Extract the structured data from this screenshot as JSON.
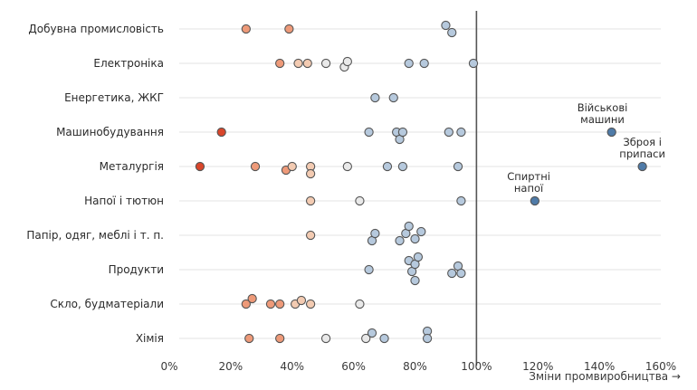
{
  "chart_data": {
    "type": "scatter",
    "title": "",
    "xlabel": "Зміни промвиробництва →",
    "ylabel": "",
    "xlim": [
      0,
      160
    ],
    "x_ticks": [
      "0%",
      "20%",
      "40%",
      "60%",
      "80%",
      "100%",
      "120%",
      "140%",
      "160%"
    ],
    "x_tick_values": [
      0,
      20,
      40,
      60,
      80,
      100,
      120,
      140,
      160
    ],
    "reference_line": 100,
    "grid": true,
    "colors": {
      "strong_decline": "#d9462b",
      "decline": "#ee9a79",
      "mild_decline": "#f3cbb2",
      "neutral": "#e9e9e9",
      "growth": "#b6c9dd",
      "strong_growth": "#4f7ba8",
      "stroke": "#555555"
    },
    "categories": [
      "Добувна промисловість",
      "Електроніка",
      "Енергетика, ЖКГ",
      "Машинобудування",
      "Металургія",
      "Напої і тютюн",
      "Папір, одяг, меблі і т. п.",
      "Продукти",
      "Скло, будматеріали",
      "Хімія"
    ],
    "points": [
      {
        "category": 0,
        "x": 25,
        "dy": 0
      },
      {
        "category": 0,
        "x": 39,
        "dy": 0
      },
      {
        "category": 0,
        "x": 90,
        "dy": -4
      },
      {
        "category": 0,
        "x": 92,
        "dy": 4
      },
      {
        "category": 1,
        "x": 36,
        "dy": 0
      },
      {
        "category": 1,
        "x": 42,
        "dy": 0
      },
      {
        "category": 1,
        "x": 45,
        "dy": 0
      },
      {
        "category": 1,
        "x": 51,
        "dy": 0
      },
      {
        "category": 1,
        "x": 57,
        "dy": 4
      },
      {
        "category": 1,
        "x": 58,
        "dy": -2
      },
      {
        "category": 1,
        "x": 78,
        "dy": 0
      },
      {
        "category": 1,
        "x": 83,
        "dy": 0
      },
      {
        "category": 1,
        "x": 99,
        "dy": 0
      },
      {
        "category": 2,
        "x": 67,
        "dy": 0
      },
      {
        "category": 2,
        "x": 73,
        "dy": 0
      },
      {
        "category": 3,
        "x": 17,
        "dy": 0
      },
      {
        "category": 3,
        "x": 65,
        "dy": 0
      },
      {
        "category": 3,
        "x": 74,
        "dy": 0
      },
      {
        "category": 3,
        "x": 75,
        "dy": 8
      },
      {
        "category": 3,
        "x": 76,
        "dy": 0
      },
      {
        "category": 3,
        "x": 91,
        "dy": 0
      },
      {
        "category": 3,
        "x": 95,
        "dy": 0
      },
      {
        "category": 3,
        "x": 144,
        "dy": 0
      },
      {
        "category": 4,
        "x": 10,
        "dy": 0
      },
      {
        "category": 4,
        "x": 28,
        "dy": 0
      },
      {
        "category": 4,
        "x": 38,
        "dy": 4
      },
      {
        "category": 4,
        "x": 40,
        "dy": 0
      },
      {
        "category": 4,
        "x": 46,
        "dy": 0
      },
      {
        "category": 4,
        "x": 46,
        "dy": 8
      },
      {
        "category": 4,
        "x": 58,
        "dy": 0
      },
      {
        "category": 4,
        "x": 71,
        "dy": 0
      },
      {
        "category": 4,
        "x": 76,
        "dy": 0
      },
      {
        "category": 4,
        "x": 94,
        "dy": 0
      },
      {
        "category": 4,
        "x": 154,
        "dy": 0
      },
      {
        "category": 5,
        "x": 46,
        "dy": 0
      },
      {
        "category": 5,
        "x": 62,
        "dy": 0
      },
      {
        "category": 5,
        "x": 95,
        "dy": 0
      },
      {
        "category": 5,
        "x": 119,
        "dy": 0
      },
      {
        "category": 6,
        "x": 46,
        "dy": 0
      },
      {
        "category": 6,
        "x": 66,
        "dy": 6
      },
      {
        "category": 6,
        "x": 67,
        "dy": -2
      },
      {
        "category": 6,
        "x": 75,
        "dy": 6
      },
      {
        "category": 6,
        "x": 77,
        "dy": -2
      },
      {
        "category": 6,
        "x": 78,
        "dy": -10
      },
      {
        "category": 6,
        "x": 80,
        "dy": 4
      },
      {
        "category": 6,
        "x": 82,
        "dy": -4
      },
      {
        "category": 7,
        "x": 65,
        "dy": 0
      },
      {
        "category": 7,
        "x": 78,
        "dy": -10
      },
      {
        "category": 7,
        "x": 79,
        "dy": 2
      },
      {
        "category": 7,
        "x": 80,
        "dy": -6
      },
      {
        "category": 7,
        "x": 80,
        "dy": 12
      },
      {
        "category": 7,
        "x": 81,
        "dy": -14
      },
      {
        "category": 7,
        "x": 92,
        "dy": 4
      },
      {
        "category": 7,
        "x": 94,
        "dy": -4
      },
      {
        "category": 7,
        "x": 95,
        "dy": 4
      },
      {
        "category": 8,
        "x": 25,
        "dy": 0
      },
      {
        "category": 8,
        "x": 27,
        "dy": -6
      },
      {
        "category": 8,
        "x": 33,
        "dy": 0
      },
      {
        "category": 8,
        "x": 36,
        "dy": 0
      },
      {
        "category": 8,
        "x": 41,
        "dy": 0
      },
      {
        "category": 8,
        "x": 43,
        "dy": -4
      },
      {
        "category": 8,
        "x": 46,
        "dy": 0
      },
      {
        "category": 8,
        "x": 62,
        "dy": 0
      },
      {
        "category": 9,
        "x": 26,
        "dy": 0
      },
      {
        "category": 9,
        "x": 36,
        "dy": 0
      },
      {
        "category": 9,
        "x": 51,
        "dy": 0
      },
      {
        "category": 9,
        "x": 64,
        "dy": 0
      },
      {
        "category": 9,
        "x": 66,
        "dy": -6
      },
      {
        "category": 9,
        "x": 70,
        "dy": 0
      },
      {
        "category": 9,
        "x": 84,
        "dy": -8
      },
      {
        "category": 9,
        "x": 84,
        "dy": 0
      }
    ],
    "annotations": [
      {
        "lines": [
          "Військові",
          "машини"
        ],
        "x": 141,
        "category": 3
      },
      {
        "lines": [
          "Зброя і",
          "припаси"
        ],
        "x": 154,
        "category": 4
      },
      {
        "lines": [
          "Спиртні",
          "напої"
        ],
        "x": 117,
        "category": 5
      }
    ]
  }
}
